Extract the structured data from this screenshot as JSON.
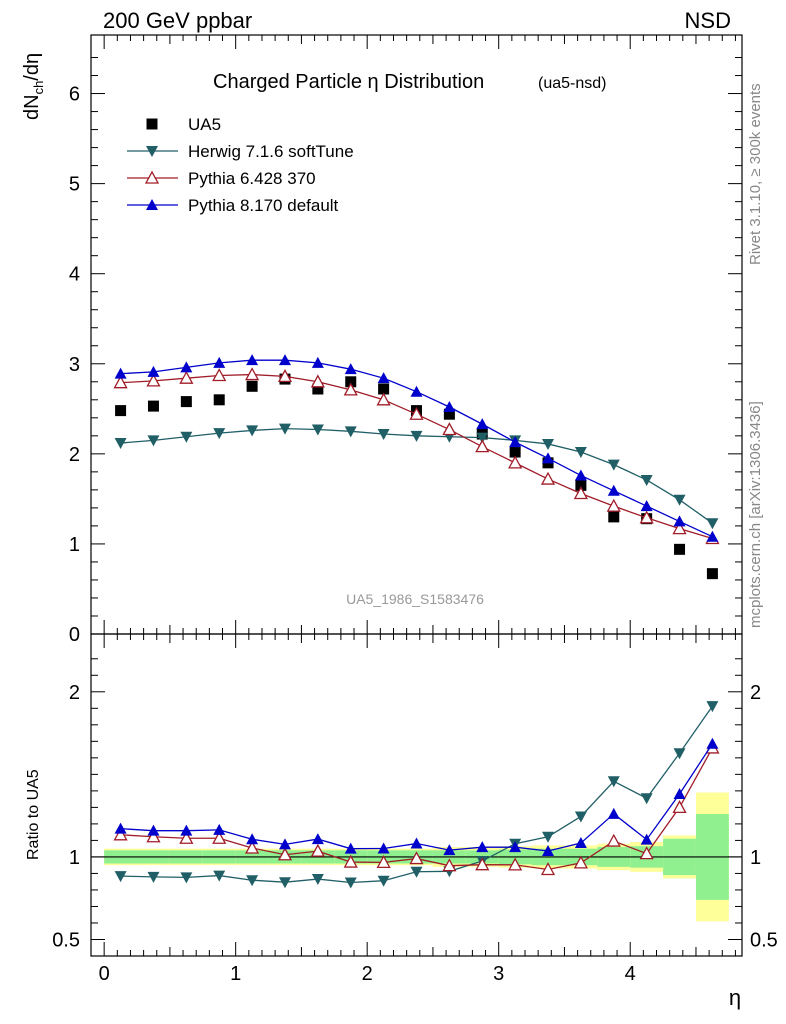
{
  "header": {
    "left": "200 GeV ppbar",
    "right": "NSD"
  },
  "side_labels": {
    "rivet": "Rivet 3.1.10, ≥ 300k events",
    "mcplots": "mcplots.cern.ch [arXiv:1306.3436]"
  },
  "watermark": "UA5_1986_S1583476",
  "chart_data": {
    "type": "scatter",
    "title": "Charged Particle η Distribution",
    "title_suffix": "(ua5-nsd)",
    "ylabel_main": "dNch/dη",
    "ylabel_ratio": "Ratio to UA5",
    "xlabel": "η",
    "xlim": [
      -0.1,
      4.85
    ],
    "ylim_main": [
      0,
      6.65
    ],
    "ylim_ratio": [
      0.4,
      2.35
    ],
    "x_ticks": [
      0,
      1,
      2,
      3,
      4
    ],
    "y_ticks_main": [
      0,
      1,
      2,
      3,
      4,
      5,
      6
    ],
    "y_ticks_ratio": [
      0.5,
      1,
      2
    ],
    "y_ticks_ratio_labels": [
      "0.5",
      "1",
      "2"
    ],
    "x": [
      0.125,
      0.375,
      0.625,
      0.875,
      1.125,
      1.375,
      1.625,
      1.875,
      2.125,
      2.375,
      2.625,
      2.875,
      3.125,
      3.375,
      3.625,
      3.875,
      4.125,
      4.375,
      4.625
    ],
    "series": [
      {
        "name": "UA5",
        "kind": "data",
        "marker": "square",
        "color": "#000000",
        "values": [
          2.48,
          2.53,
          2.58,
          2.6,
          2.75,
          2.83,
          2.72,
          2.8,
          2.72,
          2.48,
          2.44,
          2.22,
          2.02,
          1.9,
          1.65,
          1.3,
          1.28,
          0.94,
          0.67
        ]
      },
      {
        "name": "Herwig 7.1.6 softTune",
        "kind": "mc",
        "marker": "triangle-down",
        "color": "#215f67",
        "values": [
          2.12,
          2.15,
          2.19,
          2.23,
          2.26,
          2.28,
          2.27,
          2.25,
          2.22,
          2.2,
          2.19,
          2.18,
          2.15,
          2.11,
          2.02,
          1.88,
          1.71,
          1.49,
          1.23
        ],
        "ratio": [
          0.884,
          0.879,
          0.876,
          0.887,
          0.859,
          0.847,
          0.866,
          0.845,
          0.856,
          0.91,
          0.913,
          0.975,
          1.08,
          1.122,
          1.245,
          1.458,
          1.355,
          1.628,
          1.913
        ]
      },
      {
        "name": "Pythia 6.428 370",
        "kind": "mc",
        "marker": "triangle-up-open",
        "color": "#a01c28",
        "values": [
          2.79,
          2.81,
          2.84,
          2.87,
          2.88,
          2.86,
          2.8,
          2.71,
          2.6,
          2.44,
          2.27,
          2.08,
          1.9,
          1.72,
          1.56,
          1.42,
          1.29,
          1.17,
          1.06
        ],
        "ratio": [
          1.134,
          1.122,
          1.113,
          1.113,
          1.054,
          1.013,
          1.035,
          0.969,
          0.967,
          0.99,
          0.947,
          0.953,
          0.952,
          0.924,
          0.964,
          1.096,
          1.02,
          1.3,
          1.66
        ]
      },
      {
        "name": "Pythia 8.170 default",
        "kind": "mc",
        "marker": "triangle-up",
        "color": "#0000cc",
        "values": [
          2.89,
          2.91,
          2.96,
          3.01,
          3.04,
          3.04,
          3.01,
          2.94,
          2.84,
          2.69,
          2.52,
          2.33,
          2.13,
          1.95,
          1.76,
          1.59,
          1.42,
          1.25,
          1.08
        ],
        "ratio": [
          1.171,
          1.159,
          1.159,
          1.164,
          1.107,
          1.076,
          1.108,
          1.05,
          1.051,
          1.081,
          1.041,
          1.059,
          1.059,
          1.036,
          1.084,
          1.261,
          1.105,
          1.381,
          1.685
        ]
      }
    ],
    "bands": {
      "inner_color": "#90f090",
      "outer_color": "#ffff99",
      "inner_halfwidth": [
        0.04,
        0.04,
        0.04,
        0.04,
        0.04,
        0.04,
        0.04,
        0.04,
        0.04,
        0.04,
        0.04,
        0.04,
        0.045,
        0.05,
        0.05,
        0.06,
        0.065,
        0.11,
        0.26
      ],
      "outer_halfwidth": [
        0.05,
        0.05,
        0.05,
        0.05,
        0.05,
        0.05,
        0.05,
        0.05,
        0.05,
        0.05,
        0.06,
        0.06,
        0.065,
        0.07,
        0.07,
        0.08,
        0.09,
        0.13,
        0.39
      ]
    }
  }
}
